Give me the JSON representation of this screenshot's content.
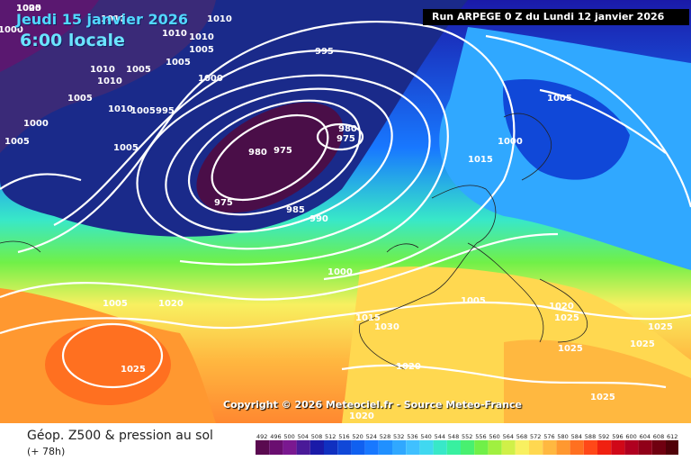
{
  "header": {
    "run_title": "Run ARPEGE 0 Z du Lundi 12 janvier 2026",
    "valid_date": "Jeudi 15 janvier 2026",
    "valid_time": "6:00 locale"
  },
  "map": {
    "copyright": "Copyright © 2026 Meteociel.fr - Source Meteo-France",
    "isobar_labels": [
      "1005",
      "1010",
      "1010",
      "1000",
      "1010",
      "1010",
      "1005",
      "1010",
      "1010",
      "1005",
      "1005",
      "1000",
      "1000",
      "1005",
      "1005",
      "995",
      "1010",
      "1005",
      "995",
      "1005",
      "980",
      "975",
      "980",
      "975",
      "975",
      "985",
      "990",
      "1000",
      "1005",
      "1015",
      "1005",
      "1005",
      "1000",
      "1015",
      "1020",
      "1025",
      "1030",
      "1020",
      "1020",
      "1020",
      "1025",
      "1025",
      "1025",
      "1025",
      "1025",
      "1020"
    ]
  },
  "footer": {
    "product": "Géop. Z500 & pression au sol",
    "lead": "(+ 78h)"
  },
  "scale": {
    "ticks": [
      "492",
      "496",
      "500",
      "504",
      "508",
      "512",
      "516",
      "520",
      "524",
      "528",
      "532",
      "536",
      "540",
      "544",
      "548",
      "552",
      "556",
      "560",
      "564",
      "568",
      "572",
      "576",
      "580",
      "584",
      "588",
      "592",
      "596",
      "600",
      "604",
      "608",
      "612"
    ],
    "colors": [
      "#5a0a50",
      "#6a0e70",
      "#7a1890",
      "#4a1a98",
      "#1a1aa8",
      "#1030c0",
      "#1048d8",
      "#1060f0",
      "#1878ff",
      "#2090ff",
      "#30a8ff",
      "#40c0ff",
      "#40d8f0",
      "#38e8c8",
      "#38f0a0",
      "#48f070",
      "#70f048",
      "#a0f040",
      "#d0f048",
      "#f8f060",
      "#ffd850",
      "#ffb840",
      "#ff9830",
      "#ff7020",
      "#ff4818",
      "#f02010",
      "#d00818",
      "#b00020",
      "#900018",
      "#700010",
      "#500008"
    ]
  }
}
